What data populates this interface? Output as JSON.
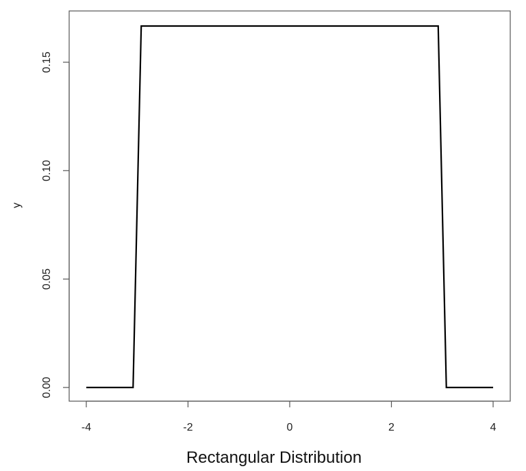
{
  "chart_data": {
    "type": "line",
    "title": "",
    "xlabel": "Rectangular Distribution",
    "ylabel": "y",
    "xlim": [
      -4,
      4
    ],
    "ylim": [
      0,
      0.1667
    ],
    "x_ticks": [
      -4,
      -2,
      0,
      2,
      4
    ],
    "x_tick_labels": [
      "-4",
      "-2",
      "0",
      "2",
      "4"
    ],
    "y_ticks": [
      0,
      0.05,
      0.1,
      0.15
    ],
    "y_tick_labels": [
      "0.00",
      "0.05",
      "0.10",
      "0.15"
    ],
    "grid": false,
    "series": [
      {
        "color": "#000000",
        "x": [
          -4,
          -3.08,
          -2.92,
          2.92,
          3.08,
          4
        ],
        "y": [
          0,
          0,
          0.1667,
          0.1667,
          0,
          0
        ]
      }
    ]
  }
}
